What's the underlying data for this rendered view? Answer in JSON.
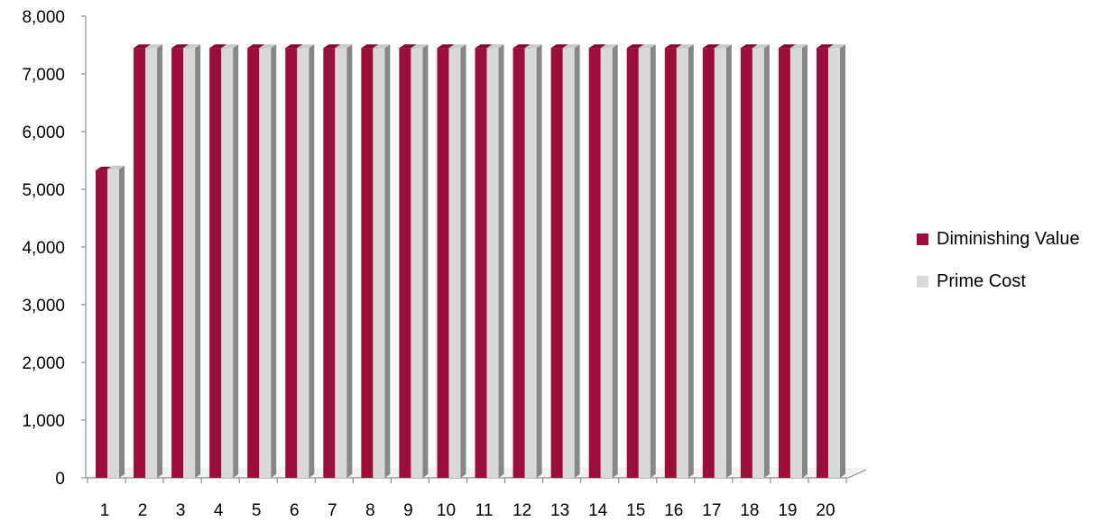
{
  "chart_data": {
    "type": "bar",
    "style": "3d-clustered-column",
    "categories": [
      "1",
      "2",
      "3",
      "4",
      "5",
      "6",
      "7",
      "8",
      "9",
      "10",
      "11",
      "12",
      "13",
      "14",
      "15",
      "16",
      "17",
      "18",
      "19",
      "20"
    ],
    "series": [
      {
        "name": "Diminishing Value",
        "color": "#9B0D3B",
        "values": [
          5330,
          7450,
          7450,
          7450,
          7450,
          7450,
          7450,
          7450,
          7450,
          7450,
          7450,
          7450,
          7450,
          7450,
          7450,
          7450,
          7450,
          7450,
          7450,
          7450
        ]
      },
      {
        "name": "Prime Cost",
        "color": "#D9D9D9",
        "values": [
          5350,
          7450,
          7450,
          7450,
          7450,
          7450,
          7450,
          7450,
          7450,
          7450,
          7450,
          7450,
          7450,
          7450,
          7450,
          7450,
          7450,
          7450,
          7450,
          7450
        ]
      }
    ],
    "y_ticks": [
      "0",
      "1,000",
      "2,000",
      "3,000",
      "4,000",
      "5,000",
      "6,000",
      "7,000",
      "8,000"
    ],
    "ylim": [
      0,
      8000
    ],
    "grid": false,
    "legend_position": "right",
    "title": "",
    "xlabel": "",
    "ylabel": ""
  }
}
